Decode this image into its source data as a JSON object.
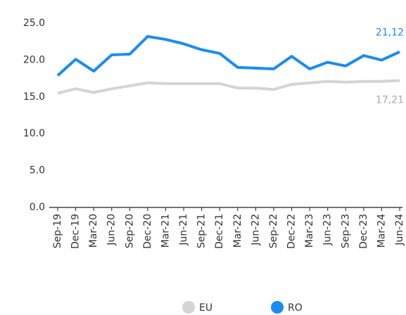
{
  "chart_data": {
    "type": "line",
    "categories": [
      "Sep-19",
      "Dec-19",
      "Mar-20",
      "Jun-20",
      "Sep-20",
      "Dec-20",
      "Mar-21",
      "Jun-21",
      "Sep-21",
      "Dec-21",
      "Mar-22",
      "Jun-22",
      "Sep-22",
      "Dec-22",
      "Mar-23",
      "Jun-23",
      "Sep-23",
      "Dec-23",
      "Mar-24",
      "Jun-24"
    ],
    "series": [
      {
        "name": "EU",
        "color": "#d4d4d4",
        "values": [
          15.5,
          16.1,
          15.6,
          16.1,
          16.5,
          16.9,
          16.8,
          16.8,
          16.8,
          16.8,
          16.2,
          16.2,
          16.0,
          16.7,
          16.9,
          17.1,
          17.0,
          17.1,
          17.1,
          17.21
        ],
        "value_labels": [
          null,
          null,
          null,
          null,
          null,
          null,
          null,
          null,
          null,
          null,
          null,
          null,
          null,
          null,
          null,
          null,
          null,
          null,
          null,
          "17,21"
        ]
      },
      {
        "name": "RO",
        "color": "#1a8cf0",
        "values": [
          17.9,
          20.1,
          18.5,
          20.7,
          20.8,
          23.2,
          22.8,
          22.2,
          21.4,
          20.9,
          19.0,
          18.9,
          18.8,
          20.5,
          18.8,
          19.7,
          19.2,
          20.6,
          20.0,
          21.12
        ],
        "value_labels": [
          null,
          null,
          null,
          null,
          null,
          null,
          null,
          null,
          null,
          null,
          null,
          null,
          null,
          null,
          null,
          null,
          null,
          null,
          null,
          "21,12"
        ]
      }
    ],
    "ylim": [
      0,
      25
    ],
    "yticks": [
      {
        "value": 0,
        "label": "0.0"
      },
      {
        "value": 5,
        "label": "5.0"
      },
      {
        "value": 10,
        "label": "10.0"
      },
      {
        "value": 15,
        "label": "15.0"
      },
      {
        "value": 20,
        "label": "20.0"
      },
      {
        "value": 25,
        "label": "25.0"
      }
    ],
    "grid": false,
    "legend": "bottom"
  }
}
